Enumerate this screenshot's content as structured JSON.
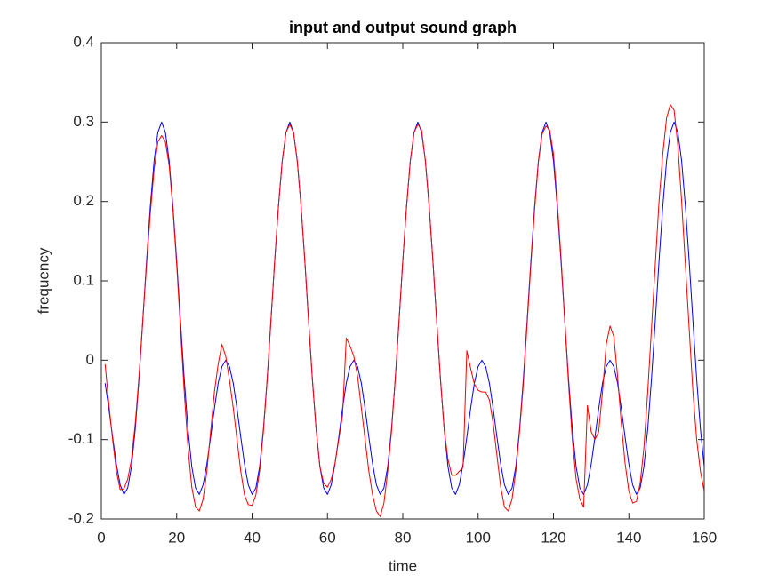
{
  "chart_data": {
    "type": "line",
    "title": "input and output sound graph",
    "xlabel": "time",
    "ylabel": "frequency",
    "x": [
      1,
      2,
      3,
      4,
      5,
      6,
      7,
      8,
      9,
      10,
      11,
      12,
      13,
      14,
      15,
      16,
      17,
      18,
      19,
      20,
      21,
      22,
      23,
      24,
      25,
      26,
      27,
      28,
      29,
      30,
      31,
      32,
      33,
      34,
      35,
      36,
      37,
      38,
      39,
      40,
      41,
      42,
      43,
      44,
      45,
      46,
      47,
      48,
      49,
      50,
      51,
      52,
      53,
      54,
      55,
      56,
      57,
      58,
      59,
      60,
      61,
      62,
      63,
      64,
      65,
      66,
      67,
      68,
      69,
      70,
      71,
      72,
      73,
      74,
      75,
      76,
      77,
      78,
      79,
      80,
      81,
      82,
      83,
      84,
      85,
      86,
      87,
      88,
      89,
      90,
      91,
      92,
      93,
      94,
      95,
      96,
      97,
      98,
      99,
      100,
      101,
      102,
      103,
      104,
      105,
      106,
      107,
      108,
      109,
      110,
      111,
      112,
      113,
      114,
      115,
      116,
      117,
      118,
      119,
      120,
      121,
      122,
      123,
      124,
      125,
      126,
      127,
      128,
      129,
      130,
      131,
      132,
      133,
      134,
      135,
      136,
      137,
      138,
      139,
      140,
      141,
      142,
      143,
      144,
      145,
      146,
      147,
      148,
      149,
      150,
      151,
      152,
      153,
      154,
      155,
      156,
      157,
      158,
      159,
      160
    ],
    "series": [
      {
        "color": "#0000ff",
        "values": [
          -0.029,
          -0.061,
          -0.097,
          -0.131,
          -0.157,
          -0.169,
          -0.161,
          -0.134,
          -0.087,
          -0.024,
          0.049,
          0.125,
          0.194,
          0.251,
          0.287,
          0.3,
          0.287,
          0.251,
          0.194,
          0.125,
          0.049,
          -0.024,
          -0.087,
          -0.134,
          -0.161,
          -0.169,
          -0.157,
          -0.131,
          -0.097,
          -0.061,
          -0.029,
          -0.008,
          0,
          -0.008,
          -0.029,
          -0.061,
          -0.097,
          -0.131,
          -0.157,
          -0.169,
          -0.161,
          -0.134,
          -0.087,
          -0.024,
          0.049,
          0.125,
          0.194,
          0.251,
          0.287,
          0.3,
          0.287,
          0.251,
          0.194,
          0.125,
          0.049,
          -0.024,
          -0.087,
          -0.134,
          -0.161,
          -0.169,
          -0.157,
          -0.131,
          -0.097,
          -0.061,
          -0.029,
          -0.008,
          0,
          -0.008,
          -0.029,
          -0.061,
          -0.097,
          -0.131,
          -0.157,
          -0.169,
          -0.161,
          -0.134,
          -0.087,
          -0.024,
          0.049,
          0.125,
          0.194,
          0.251,
          0.287,
          0.3,
          0.287,
          0.251,
          0.194,
          0.125,
          0.049,
          -0.024,
          -0.087,
          -0.134,
          -0.161,
          -0.169,
          -0.157,
          -0.131,
          -0.097,
          -0.061,
          -0.029,
          -0.008,
          0,
          -0.008,
          -0.029,
          -0.061,
          -0.097,
          -0.131,
          -0.157,
          -0.169,
          -0.161,
          -0.134,
          -0.087,
          -0.024,
          0.049,
          0.125,
          0.194,
          0.251,
          0.287,
          0.3,
          0.287,
          0.251,
          0.194,
          0.125,
          0.049,
          -0.024,
          -0.087,
          -0.134,
          -0.161,
          -0.169,
          -0.157,
          -0.131,
          -0.097,
          -0.061,
          -0.029,
          -0.008,
          0,
          -0.008,
          -0.029,
          -0.061,
          -0.097,
          -0.131,
          -0.157,
          -0.169,
          -0.161,
          -0.134,
          -0.087,
          -0.024,
          0.049,
          0.125,
          0.194,
          0.251,
          0.287,
          0.3,
          0.287,
          0.251,
          0.194,
          0.125,
          0.049,
          -0.024,
          -0.087,
          -0.134
        ]
      },
      {
        "color": "#ff0000",
        "values": [
          -0.005,
          -0.055,
          -0.1,
          -0.14,
          -0.163,
          -0.162,
          -0.15,
          -0.125,
          -0.08,
          -0.02,
          0.05,
          0.12,
          0.185,
          0.24,
          0.275,
          0.283,
          0.275,
          0.245,
          0.19,
          0.12,
          0.04,
          -0.04,
          -0.11,
          -0.16,
          -0.185,
          -0.19,
          -0.175,
          -0.14,
          -0.09,
          -0.04,
          -0.005,
          0.02,
          0.005,
          -0.025,
          -0.06,
          -0.1,
          -0.14,
          -0.17,
          -0.182,
          -0.183,
          -0.17,
          -0.14,
          -0.09,
          -0.025,
          0.05,
          0.125,
          0.194,
          0.251,
          0.287,
          0.297,
          0.287,
          0.25,
          0.194,
          0.125,
          0.049,
          -0.024,
          -0.087,
          -0.134,
          -0.155,
          -0.16,
          -0.15,
          -0.13,
          -0.1,
          -0.07,
          0.028,
          0.018,
          0.005,
          -0.02,
          -0.06,
          -0.1,
          -0.14,
          -0.17,
          -0.19,
          -0.197,
          -0.18,
          -0.14,
          -0.09,
          -0.024,
          0.049,
          0.125,
          0.194,
          0.251,
          0.287,
          0.297,
          0.29,
          0.251,
          0.194,
          0.125,
          0.049,
          -0.024,
          -0.087,
          -0.125,
          -0.145,
          -0.145,
          -0.14,
          -0.135,
          0.012,
          -0.01,
          -0.03,
          -0.038,
          -0.04,
          -0.04,
          -0.05,
          -0.08,
          -0.12,
          -0.16,
          -0.185,
          -0.19,
          -0.175,
          -0.14,
          -0.09,
          -0.03,
          0.045,
          0.12,
          0.19,
          0.25,
          0.285,
          0.295,
          0.29,
          0.26,
          0.2,
          0.13,
          0.05,
          -0.03,
          -0.1,
          -0.15,
          -0.175,
          -0.185,
          -0.057,
          -0.09,
          -0.1,
          -0.09,
          -0.04,
          0.02,
          0.043,
          0.03,
          -0.02,
          -0.08,
          -0.13,
          -0.165,
          -0.18,
          -0.178,
          -0.155,
          -0.11,
          -0.04,
          0.04,
          0.12,
          0.2,
          0.26,
          0.305,
          0.322,
          0.315,
          0.27,
          0.2,
          0.12,
          0.04,
          -0.04,
          -0.1,
          -0.14,
          -0.165
        ]
      }
    ],
    "xlim": [
      0,
      160
    ],
    "xticks": [
      0,
      20,
      40,
      60,
      80,
      100,
      120,
      140,
      160
    ],
    "ylim": [
      -0.2,
      0.4
    ],
    "yticks": [
      -0.2,
      -0.1,
      0,
      0.1,
      0.2,
      0.3,
      0.4
    ]
  }
}
